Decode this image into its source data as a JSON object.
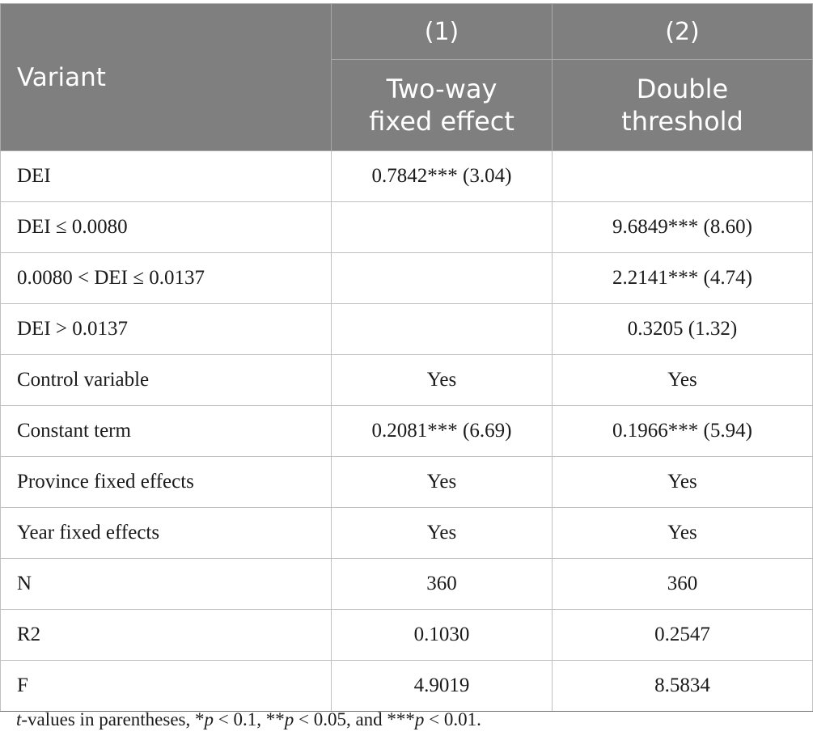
{
  "header": {
    "variant_label": "Variant",
    "col1_number": "(1)",
    "col2_number": "(2)",
    "col1_title_line1": "Two-way",
    "col1_title_line2": "fixed effect",
    "col2_title_line1": "Double",
    "col2_title_line2": "threshold"
  },
  "rows": [
    {
      "label": "DEI",
      "c1": "0.7842*** (3.04)",
      "c2": ""
    },
    {
      "label": "DEI ≤ 0.0080",
      "c1": "",
      "c2": "9.6849*** (8.60)"
    },
    {
      "label": "0.0080 < DEI ≤ 0.0137",
      "c1": "",
      "c2": "2.2141*** (4.74)"
    },
    {
      "label": "DEI > 0.0137",
      "c1": "",
      "c2": "0.3205 (1.32)"
    },
    {
      "label": "Control variable",
      "c1": "Yes",
      "c2": "Yes"
    },
    {
      "label": "Constant term",
      "c1": "0.2081*** (6.69)",
      "c2": "0.1966*** (5.94)"
    },
    {
      "label": "Province fixed effects",
      "c1": "Yes",
      "c2": "Yes"
    },
    {
      "label": "Year fixed effects",
      "c1": "Yes",
      "c2": "Yes"
    },
    {
      "label": "N",
      "c1": "360",
      "c2": "360"
    },
    {
      "label": "R2",
      "c1": "0.1030",
      "c2": "0.2547"
    },
    {
      "label": "F",
      "c1": "4.9019",
      "c2": "8.5834"
    }
  ],
  "note": {
    "t": "t",
    "part1": "-values in parentheses, *",
    "p1": "p",
    "part2": " < 0.1, **",
    "p2": "p",
    "part3": " < 0.05, and ***",
    "p3": "p",
    "part4": " < 0.01."
  }
}
